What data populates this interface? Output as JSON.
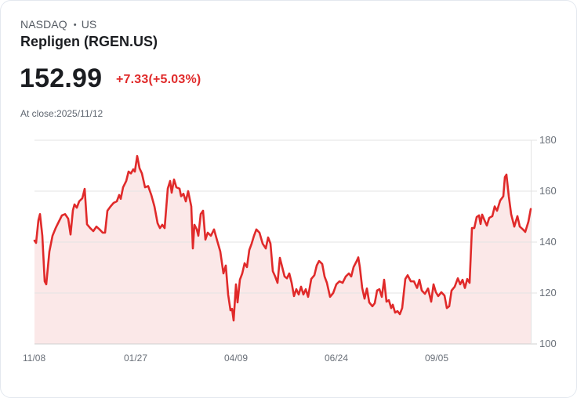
{
  "header": {
    "exchange": "NASDAQ",
    "separator": "•",
    "region": "US",
    "title": "Repligen (RGEN.US)"
  },
  "quote": {
    "price": "152.99",
    "change": "+7.33(+5.03%)",
    "close_label": "At close:2025/11/12"
  },
  "colors": {
    "line": "#e02a2a",
    "fill": "#fbe8e8",
    "grid": "#e3e3e3",
    "change_positive": "#e02a2a"
  },
  "chart_data": {
    "type": "area",
    "title": "Repligen (RGEN.US)",
    "xlabel": "",
    "ylabel": "",
    "ylim": [
      100,
      180
    ],
    "yticks": [
      100,
      120,
      140,
      160,
      180
    ],
    "xtick_labels": [
      "11/08",
      "01/27",
      "04/09",
      "06/24",
      "09/05"
    ],
    "grid": true,
    "axis_position": "right",
    "series": [
      {
        "name": "RGEN.US",
        "px": [
          43,
          45,
          48,
          50,
          53,
          56,
          58,
          62,
          66,
          70,
          74,
          78,
          82,
          86,
          89,
          92,
          94,
          97,
          100,
          104,
          107,
          110,
          114,
          118,
          122,
          126,
          130,
          133,
          136,
          140,
          144,
          148,
          151,
          153,
          156,
          160,
          163,
          166,
          169,
          171,
          174,
          177,
          180,
          184,
          188,
          192,
          196,
          200,
          203,
          206,
          209,
          213,
          216,
          218,
          221,
          224,
          228,
          230,
          233,
          236,
          239,
          243,
          245,
          247,
          250,
          252,
          255,
          258,
          261,
          264,
          268,
          272,
          276,
          280,
          284,
          287,
          290,
          293,
          295,
          297,
          300,
          302,
          305,
          308,
          311,
          314,
          317,
          320,
          323,
          326,
          330,
          334,
          338,
          341,
          344,
          347,
          350,
          353,
          356,
          359,
          362,
          365,
          368,
          371,
          374,
          377,
          380,
          383,
          386,
          389,
          392,
          396,
          400,
          403,
          406,
          410,
          413,
          416,
          420,
          424,
          428,
          432,
          436,
          440,
          444,
          447,
          450,
          454,
          456,
          458,
          461,
          464,
          467,
          470,
          474,
          477,
          480,
          483,
          486,
          489,
          492,
          495,
          498,
          500,
          503,
          506,
          509,
          512,
          516,
          519,
          523,
          527,
          531,
          534,
          537,
          541,
          545,
          549,
          552,
          555,
          558,
          562,
          566,
          569,
          572,
          575,
          579,
          583,
          586,
          589,
          592,
          595,
          598,
          601,
          604,
          607,
          610,
          612,
          614,
          617,
          620,
          623,
          627,
          630,
          633,
          637,
          641,
          643,
          645,
          648,
          651,
          655,
          659,
          662,
          666,
          669,
          673,
          676
        ],
        "values": [
          140.6,
          139.7,
          148.6,
          151.0,
          142.5,
          124.6,
          123.4,
          136.3,
          142.5,
          145.5,
          148.0,
          150.5,
          151.0,
          149.2,
          143.0,
          152.5,
          154.8,
          153.5,
          156.0,
          157.2,
          160.9,
          147.0,
          145.5,
          144.3,
          146.1,
          145.0,
          143.7,
          143.7,
          152.3,
          154.0,
          155.4,
          156.0,
          158.5,
          157.0,
          161.5,
          164.0,
          167.7,
          167.0,
          168.6,
          167.7,
          173.8,
          169.0,
          167.0,
          161.5,
          162.0,
          158.5,
          154.0,
          147.4,
          145.5,
          146.8,
          145.5,
          161.0,
          164.0,
          159.4,
          164.6,
          161.5,
          161.0,
          158.0,
          159.0,
          156.0,
          160.0,
          154.0,
          137.5,
          146.8,
          145.0,
          142.5,
          151.0,
          152.3,
          141.0,
          143.7,
          142.5,
          145.0,
          140.6,
          136.3,
          127.7,
          130.8,
          119.4,
          113.2,
          113.8,
          109.2,
          123.4,
          116.3,
          125.2,
          127.7,
          131.7,
          130.2,
          136.9,
          139.4,
          142.5,
          145.0,
          143.7,
          139.4,
          137.5,
          141.8,
          139.4,
          128.6,
          126.5,
          124.0,
          133.8,
          130.2,
          126.5,
          125.8,
          127.7,
          124.0,
          118.8,
          121.5,
          119.4,
          122.5,
          119.4,
          121.5,
          118.5,
          125.5,
          127.0,
          130.8,
          132.6,
          131.4,
          126.5,
          124.0,
          118.5,
          120.0,
          123.4,
          124.6,
          124.0,
          126.5,
          127.7,
          126.5,
          130.2,
          132.6,
          134.0,
          130.2,
          122.0,
          117.8,
          121.8,
          116.3,
          114.8,
          116.0,
          121.0,
          121.5,
          118.5,
          125.2,
          116.6,
          117.2,
          114.1,
          115.4,
          112.3,
          112.9,
          111.7,
          114.1,
          125.5,
          127.0,
          124.6,
          124.6,
          122.0,
          125.2,
          121.0,
          119.7,
          121.8,
          116.6,
          123.4,
          120.3,
          118.8,
          120.3,
          119.0,
          114.1,
          114.8,
          121.0,
          122.5,
          125.8,
          123.4,
          125.2,
          122.0,
          125.5,
          124.0,
          145.5,
          145.5,
          149.8,
          150.5,
          147.1,
          150.8,
          148.6,
          146.5,
          149.5,
          150.2,
          154.0,
          152.3,
          156.3,
          158.0,
          165.5,
          166.5,
          158.0,
          151.0,
          146.1,
          150.2,
          146.1,
          145.0,
          144.0,
          148.0,
          152.99
        ]
      }
    ]
  }
}
